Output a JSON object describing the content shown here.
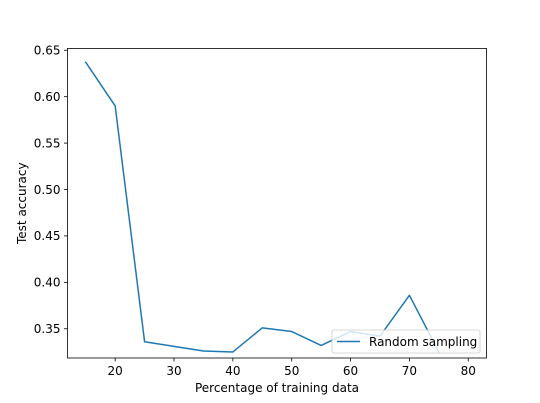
{
  "chart_data": {
    "type": "line",
    "title": "",
    "xlabel": "Percentage of training data",
    "ylabel": "Test accuracy",
    "xlim": [
      11.9,
      83.1
    ],
    "ylim": [
      0.3185,
      0.652
    ],
    "xticks": [
      20,
      30,
      40,
      50,
      60,
      70,
      80
    ],
    "xtick_labels": [
      "20",
      "30",
      "40",
      "50",
      "60",
      "70",
      "80"
    ],
    "yticks": [
      0.35,
      0.4,
      0.45,
      0.5,
      0.55,
      0.6,
      0.65
    ],
    "ytick_labels": [
      "0.35",
      "0.40",
      "0.45",
      "0.50",
      "0.55",
      "0.60",
      "0.65"
    ],
    "grid": false,
    "legend": {
      "position": "lower-right"
    },
    "series": [
      {
        "name": "Random sampling",
        "color": "#1f77b4",
        "x": [
          15,
          20,
          25,
          30,
          35,
          40,
          45,
          50,
          55,
          60,
          65,
          70,
          75
        ],
        "y": [
          0.637,
          0.59,
          0.336,
          0.331,
          0.326,
          0.325,
          0.351,
          0.347,
          0.332,
          0.347,
          0.342,
          0.386,
          0.325
        ]
      }
    ]
  }
}
